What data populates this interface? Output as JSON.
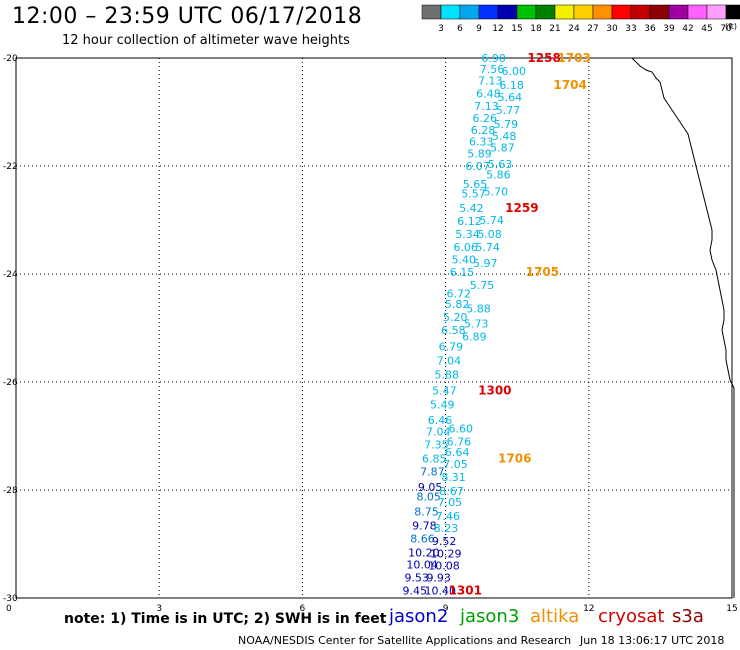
{
  "title": "12:00 – 23:59 UTC 06/17/2018",
  "subtitle": "12 hour collection of altimeter wave heights",
  "colorbar": {
    "labels": [
      "3",
      "6",
      "9",
      "12",
      "15",
      "18",
      "21",
      "24",
      "27",
      "30",
      "33",
      "36",
      "39",
      "42",
      "45",
      "70"
    ],
    "unit": "(ft)",
    "colors": [
      "#707070",
      "#00e0ff",
      "#00a8f0",
      "#0030ff",
      "#0000b0",
      "#00c000",
      "#008000",
      "#f0f000",
      "#ffd000",
      "#ff9000",
      "#ff0000",
      "#c00000",
      "#8b0000",
      "#a000a0",
      "#ff60ff",
      "#ffa0ff",
      "#000000"
    ]
  },
  "axes": {
    "y_ticks": [
      "-20",
      "-22",
      "-24",
      "-26",
      "-28",
      "-30"
    ],
    "x_ticks": [
      "0",
      "3",
      "6",
      "9",
      "12",
      "15"
    ]
  },
  "track_colors": {
    "cyan": "#00b8e8",
    "medblue": "#0070d0",
    "darkblue": "#0000b0"
  },
  "observations": [
    {
      "v": "6.90",
      "lat": -20.0,
      "c": "cyan"
    },
    {
      "v": "7.56",
      "lat": -20.2,
      "c": "cyan"
    },
    {
      "v": "6.00",
      "lat": -20.24,
      "c": "cyan",
      "shift": 1
    },
    {
      "v": "7.13",
      "lat": -20.42,
      "c": "cyan"
    },
    {
      "v": "6.18",
      "lat": -20.5,
      "c": "cyan",
      "shift": 1
    },
    {
      "v": "6.48",
      "lat": -20.66,
      "c": "cyan"
    },
    {
      "v": "5.64",
      "lat": -20.72,
      "c": "cyan",
      "shift": 1
    },
    {
      "v": "7.13",
      "lat": -20.89,
      "c": "cyan"
    },
    {
      "v": "5.77",
      "lat": -20.96,
      "c": "cyan",
      "shift": 1
    },
    {
      "v": "6.26",
      "lat": -21.11,
      "c": "cyan"
    },
    {
      "v": "5.79",
      "lat": -21.22,
      "c": "cyan",
      "shift": 1
    },
    {
      "v": "6.28",
      "lat": -21.33,
      "c": "cyan"
    },
    {
      "v": "5.48",
      "lat": -21.44,
      "c": "cyan",
      "shift": 1
    },
    {
      "v": "6.33",
      "lat": -21.55,
      "c": "cyan"
    },
    {
      "v": "5.87",
      "lat": -21.66,
      "c": "cyan",
      "shift": 1
    },
    {
      "v": "5.89",
      "lat": -21.77,
      "c": "cyan"
    },
    {
      "v": "5.63",
      "lat": -21.96,
      "c": "cyan",
      "shift": 1
    },
    {
      "v": "6.07",
      "lat": -22.0,
      "c": "cyan"
    },
    {
      "v": "5.86",
      "lat": -22.16,
      "c": "cyan",
      "shift": 1
    },
    {
      "v": "5.65",
      "lat": -22.33,
      "c": "cyan"
    },
    {
      "v": "5.70",
      "lat": -22.47,
      "c": "cyan",
      "shift": 1
    },
    {
      "v": "5.57",
      "lat": -22.51,
      "c": "cyan"
    },
    {
      "v": "5.42",
      "lat": -22.78,
      "c": "cyan"
    },
    {
      "v": "5.74",
      "lat": -23.0,
      "c": "cyan",
      "shift": 1
    },
    {
      "v": "6.12",
      "lat": -23.02,
      "c": "cyan"
    },
    {
      "v": "5.34",
      "lat": -23.26,
      "c": "cyan"
    },
    {
      "v": "5.08",
      "lat": -23.26,
      "c": "cyan",
      "shift": 1
    },
    {
      "v": "6.06",
      "lat": -23.5,
      "c": "cyan"
    },
    {
      "v": "5.74",
      "lat": -23.5,
      "c": "cyan",
      "shift": 1
    },
    {
      "v": "5.40",
      "lat": -23.73,
      "c": "cyan"
    },
    {
      "v": "5.97",
      "lat": -23.8,
      "c": "cyan",
      "shift": 1
    },
    {
      "v": "6.15",
      "lat": -23.96,
      "c": "cyan"
    },
    {
      "v": "5.75",
      "lat": -24.2,
      "c": "cyan",
      "shift": 1
    },
    {
      "v": "6.72",
      "lat": -24.36,
      "c": "cyan"
    },
    {
      "v": "5.82",
      "lat": -24.56,
      "c": "cyan"
    },
    {
      "v": "5.88",
      "lat": -24.64,
      "c": "cyan",
      "shift": 1
    },
    {
      "v": "5.20",
      "lat": -24.8,
      "c": "cyan"
    },
    {
      "v": "5.73",
      "lat": -24.92,
      "c": "cyan",
      "shift": 1
    },
    {
      "v": "6.58",
      "lat": -25.04,
      "c": "cyan"
    },
    {
      "v": "6.89",
      "lat": -25.16,
      "c": "cyan",
      "shift": 1
    },
    {
      "v": "6.79",
      "lat": -25.34,
      "c": "cyan"
    },
    {
      "v": "7.04",
      "lat": -25.6,
      "c": "cyan"
    },
    {
      "v": "5.88",
      "lat": -25.86,
      "c": "cyan"
    },
    {
      "v": "5.47",
      "lat": -26.16,
      "c": "cyan"
    },
    {
      "v": "5.49",
      "lat": -26.42,
      "c": "cyan"
    },
    {
      "v": "6.46",
      "lat": -26.7,
      "c": "cyan"
    },
    {
      "v": "6.60",
      "lat": -26.86,
      "c": "cyan",
      "shift": 1
    },
    {
      "v": "7.04",
      "lat": -26.92,
      "c": "cyan"
    },
    {
      "v": "6.76",
      "lat": -27.1,
      "c": "cyan",
      "shift": 1
    },
    {
      "v": "7.35",
      "lat": -27.16,
      "c": "cyan"
    },
    {
      "v": "6.64",
      "lat": -27.3,
      "c": "cyan",
      "shift": 1
    },
    {
      "v": "6.85",
      "lat": -27.42,
      "c": "cyan"
    },
    {
      "v": "7.05",
      "lat": -27.52,
      "c": "cyan",
      "shift": 1
    },
    {
      "v": "7.87",
      "lat": -27.66,
      "c": "medblue"
    },
    {
      "v": "8.31",
      "lat": -27.76,
      "c": "cyan",
      "shift": 1
    },
    {
      "v": "9.05",
      "lat": -27.94,
      "c": "darkblue"
    },
    {
      "v": "8.67",
      "lat": -28.02,
      "c": "cyan",
      "shift": 1
    },
    {
      "v": "8.05",
      "lat": -28.12,
      "c": "medblue"
    },
    {
      "v": "7.05",
      "lat": -28.22,
      "c": "cyan",
      "shift": 1
    },
    {
      "v": "8.75",
      "lat": -28.4,
      "c": "medblue"
    },
    {
      "v": "7.46",
      "lat": -28.48,
      "c": "cyan",
      "shift": 1
    },
    {
      "v": "9.78",
      "lat": -28.66,
      "c": "darkblue"
    },
    {
      "v": "8.23",
      "lat": -28.7,
      "c": "cyan",
      "shift": 1
    },
    {
      "v": "8.66",
      "lat": -28.9,
      "c": "medblue"
    },
    {
      "v": "9.52",
      "lat": -28.94,
      "c": "darkblue",
      "shift": 1
    },
    {
      "v": "10.20",
      "lat": -29.16,
      "c": "darkblue"
    },
    {
      "v": "10.29",
      "lat": -29.18,
      "c": "darkblue",
      "shift": 1
    },
    {
      "v": "10.04",
      "lat": -29.38,
      "c": "darkblue"
    },
    {
      "v": "10.08",
      "lat": -29.4,
      "c": "darkblue",
      "shift": 1
    },
    {
      "v": "9.53",
      "lat": -29.62,
      "c": "darkblue"
    },
    {
      "v": "9.93",
      "lat": -29.62,
      "c": "darkblue",
      "shift": 1
    },
    {
      "v": "9.45",
      "lat": -29.86,
      "c": "darkblue"
    },
    {
      "v": "10.40",
      "lat": -29.86,
      "c": "darkblue",
      "shift": 1
    }
  ],
  "time_labels": [
    {
      "t": "1258",
      "lat": -20.0,
      "color": "#e00000",
      "off": 0
    },
    {
      "t": "1703",
      "lat": -20.0,
      "color": "#f09000",
      "off": 1
    },
    {
      "t": "1704",
      "lat": -20.5,
      "color": "#f09000",
      "off": 1
    },
    {
      "t": "1259",
      "lat": -22.78,
      "color": "#e00000",
      "off": 0
    },
    {
      "t": "1705",
      "lat": -23.96,
      "color": "#f09000",
      "off": 1
    },
    {
      "t": "1300",
      "lat": -26.16,
      "color": "#e00000",
      "off": 0
    },
    {
      "t": "1706",
      "lat": -27.42,
      "color": "#f09000",
      "off": 1
    },
    {
      "t": "1301",
      "lat": -29.86,
      "color": "#e00000",
      "off": 0
    }
  ],
  "note": "note:  1) Time is in UTC;  2) SWH is in feet",
  "satellites": [
    {
      "name": "jason2",
      "color": "#0000d0"
    },
    {
      "name": "jason3",
      "color": "#00a000"
    },
    {
      "name": "altika",
      "color": "#f09000"
    },
    {
      "name": "cryosat",
      "color": "#d00000"
    },
    {
      "name": "s3a",
      "color": "#900000"
    }
  ],
  "credit": "NOAA/NESDIS Center for Satellite Applications and Research",
  "generated": "Jun 18 13:06:17 UTC 2018"
}
